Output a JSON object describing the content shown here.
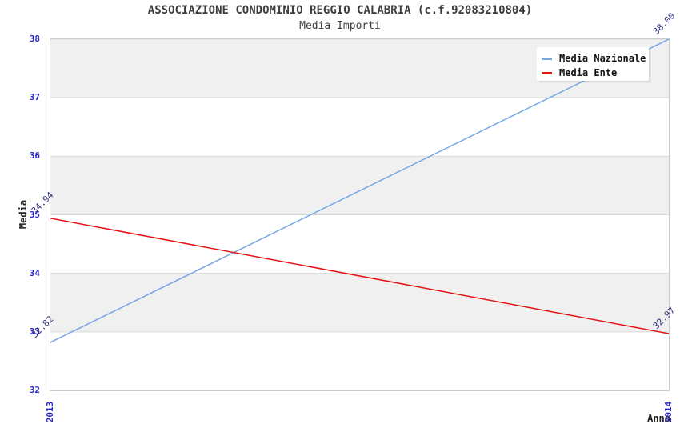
{
  "header": {
    "title": "ASSOCIAZIONE CONDOMINIO REGGIO CALABRIA (c.f.92083210804)",
    "subtitle": "Media Importi"
  },
  "chart_data": {
    "type": "line",
    "title": "ASSOCIAZIONE CONDOMINIO REGGIO CALABRIA (c.f.92083210804)",
    "subtitle": "Media Importi",
    "xlabel": "Anno",
    "ylabel": "Media",
    "categories": [
      "2013",
      "2014"
    ],
    "series": [
      {
        "name": "Media Nazionale",
        "color": "#74a7e4",
        "values": [
          32.82,
          38.0
        ],
        "point_labels": [
          "32.82",
          "38.00"
        ]
      },
      {
        "name": "Media Ente",
        "color": "#e41414",
        "values": [
          34.94,
          32.97
        ],
        "point_labels": [
          "34.94",
          "32.97"
        ]
      }
    ],
    "ylim": [
      32,
      38
    ],
    "yticks": [
      38,
      37,
      36,
      35,
      34,
      33,
      32
    ],
    "grid": "horizontal-bands",
    "band_colors": [
      "#f0f0f0",
      "#ffffff"
    ],
    "legend_position": "top-right"
  },
  "colors": {
    "tick_label": "#2828cc",
    "point_label": "#333380",
    "grid_line": "#d9d9d9",
    "plot_border": "#cccccc",
    "band_gray": "#f0f0f0",
    "title_text": "#3d3d3d"
  }
}
